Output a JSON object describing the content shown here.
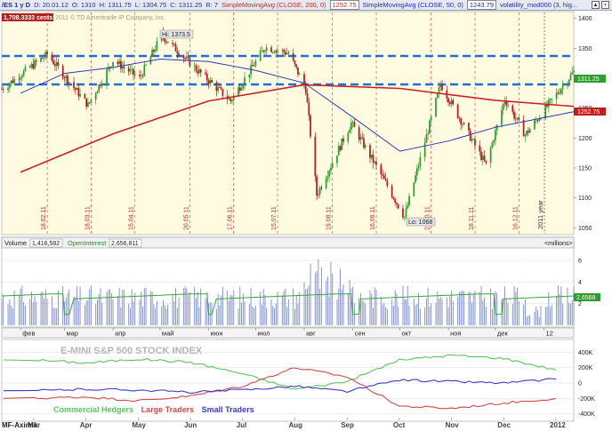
{
  "header": {
    "symbol": "/ES 1 y D",
    "date": "D: 20.01.12",
    "open": "O: 1310",
    "high": "H: 1311.75",
    "low": "L: 1304.75",
    "close": "C: 1311.25",
    "range": "R: 7",
    "sma200_label": "SimpleMovingAvg (CLOSE, 200, 0)",
    "sma200_value": "1252.75",
    "sma50_label": "SimpleMovingAvg (CLOSE, 50, 0)",
    "sma50_value": "1243.79",
    "volatility_label": "volatility_mod000 (3, hig..."
  },
  "price_panel": {
    "cents_label": "1,708.3333 cents",
    "copyright": "2011 © TD Ameritrade IP Company, Inc.",
    "hi_label": "Hi: 1373.5",
    "lo_label": "Lo: 1068",
    "last_price": "1311.25",
    "sma_tag": "1252.75",
    "year_marker": "2011 year",
    "y_ticks": [
      "1400",
      "1350",
      "1300",
      "1250",
      "1200",
      "1150",
      "1100",
      "1050"
    ],
    "date_markers": [
      "18.02.11",
      "18.03.11",
      "15.04.11",
      "20.05.11",
      "17.06.11",
      "15.07.11",
      "19.08.11",
      "16.09.11",
      "21.10.11",
      "18.11.11",
      "16.12.11"
    ]
  },
  "volume_panel": {
    "volume_label": "Volume",
    "volume_value": "1,416,582",
    "oi_label": "OpenInterest",
    "oi_value": "2,656,811",
    "units": "<millions>",
    "y_ticks": [
      "6",
      "4",
      "2"
    ],
    "oi_tag": "2.6568"
  },
  "month_axis": [
    "фев",
    "мар",
    "апр",
    "май",
    "июн",
    "июл",
    "авг",
    "сен",
    "окт",
    "ноя",
    "дек",
    "12"
  ],
  "cot_panel": {
    "title": "E-MINI S&P 500 STOCK INDEX",
    "y_ticks": [
      "400K",
      "200K",
      "0",
      "-200K",
      "-400K"
    ],
    "legend": [
      {
        "name": "Commercial Hedgers",
        "color": "#59c659"
      },
      {
        "name": "Large Traders",
        "color": "#d24a4a"
      },
      {
        "name": "Small Traders",
        "color": "#3a3acc"
      }
    ],
    "x_labels": [
      "Mar",
      "Apr",
      "May",
      "Jun",
      "Jul",
      "Aug",
      "Sep",
      "Oct",
      "Nov",
      "Dec",
      "2012"
    ],
    "watermark": "MF-Aximik"
  },
  "colors": {
    "up_candle": "#2e9a2e",
    "down_candle": "#b01c1c",
    "sma200": "#cc2222",
    "sma50": "#2a3ab8",
    "resistance": "#1f6fd6",
    "volume_bar": "#7c8cc4",
    "open_interest": "#35a835"
  },
  "chart_data": [
    {
      "type": "line",
      "title": "",
      "series": [
        {
          "name": "SimpleMovingAvg (CLOSE, 200, 0)",
          "x": [
            "2011-02-01",
            "2011-04-01",
            "2011-06-01",
            "2011-08-01",
            "2011-10-01",
            "2011-12-01",
            "2012-01-20"
          ],
          "values": [
            1143,
            1207,
            1262,
            1289,
            1283,
            1263,
            1253
          ]
        },
        {
          "name": "SimpleMovingAvg (CLOSE, 50, 0)",
          "x": [
            "2011-02-01",
            "2011-03-01",
            "2011-04-01",
            "2011-05-01",
            "2011-06-01",
            "2011-07-01",
            "2011-08-01",
            "2011-09-01",
            "2011-10-01",
            "2011-11-01",
            "2011-12-01",
            "2012-01-20"
          ],
          "values": [
            1275,
            1308,
            1318,
            1332,
            1328,
            1313,
            1292,
            1235,
            1178,
            1195,
            1218,
            1244
          ]
        }
      ],
      "ohlc_last": {
        "date": "2012-01-20",
        "open": 1310,
        "high": 1311.75,
        "low": 1304.75,
        "close": 1311.25
      },
      "annotations": {
        "high": 1373.5,
        "low": 1068,
        "resistance_levels": [
          1352,
          1302
        ]
      },
      "ylim": [
        1040,
        1410
      ]
    },
    {
      "type": "bar",
      "title": "Volume",
      "ylabel": "<millions>",
      "last_volume": 1416582,
      "last_open_interest": 2656811,
      "ylim": [
        0,
        7
      ]
    },
    {
      "type": "line",
      "title": "E-MINI S&P 500 STOCK INDEX",
      "categories": [
        "Mar",
        "Apr",
        "May",
        "Jun",
        "Jul",
        "Aug",
        "Sep",
        "Oct",
        "Nov",
        "Dec",
        "2012"
      ],
      "series": [
        {
          "name": "Commercial Hedgers",
          "values": [
            300,
            260,
            310,
            270,
            120,
            -80,
            20,
            300,
            360,
            320,
            170
          ]
        },
        {
          "name": "Large Traders",
          "values": [
            -200,
            -180,
            -230,
            -170,
            -40,
            200,
            80,
            -300,
            -330,
            -260,
            -200
          ]
        },
        {
          "name": "Small Traders",
          "values": [
            -100,
            -80,
            -90,
            -120,
            -90,
            -40,
            -110,
            40,
            20,
            0,
            50
          ]
        }
      ],
      "ylim": [
        -450,
        450
      ]
    }
  ]
}
